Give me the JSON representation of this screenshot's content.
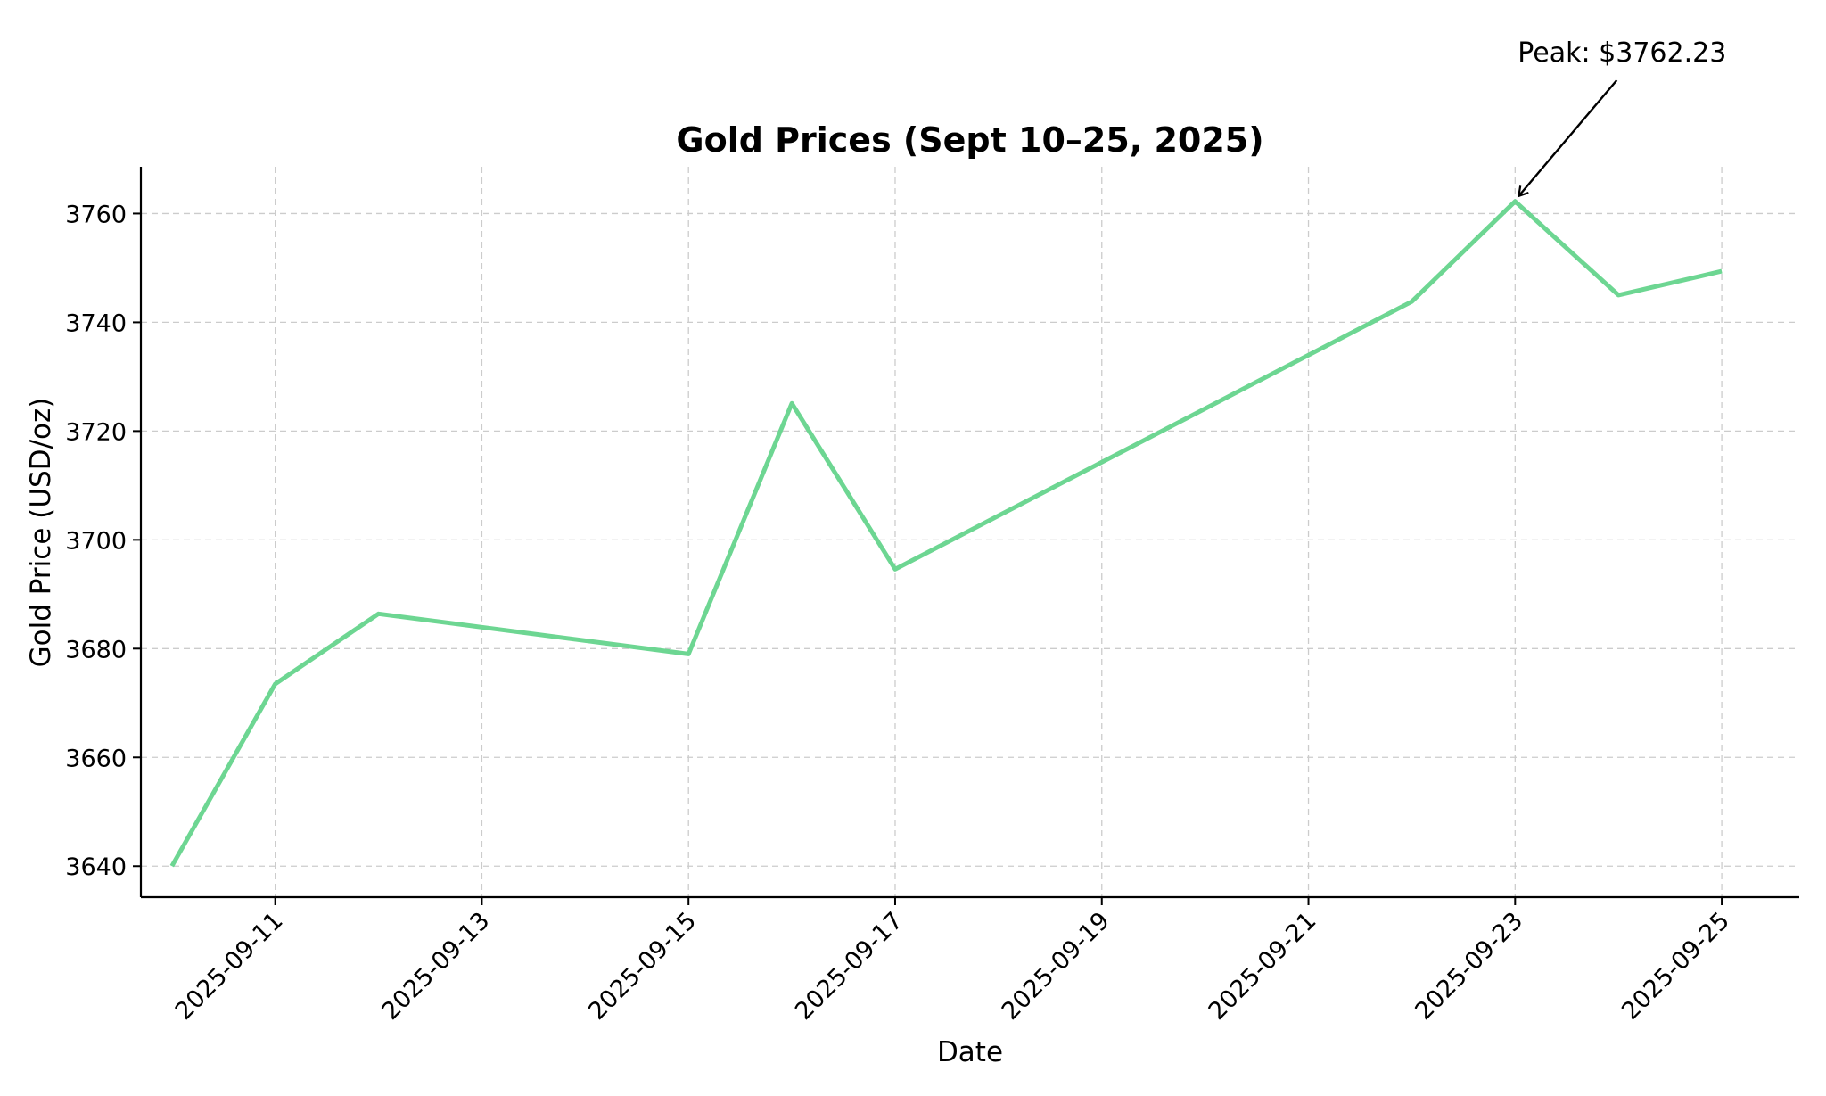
{
  "colors": {
    "series_line": "#6dd692",
    "annotation_arrow": "#000000"
  },
  "chart_data": {
    "type": "line",
    "title": "Gold Prices (Sept 10–25, 2025)",
    "xlabel": "Date",
    "ylabel": "Gold Price (USD/oz)",
    "xlim": [
      "2025-09-09.7",
      "2025-09-25.75"
    ],
    "ylim": [
      3634.3,
      3768.6
    ],
    "grid": true,
    "x_ticks": [
      "2025-09-11",
      "2025-09-13",
      "2025-09-15",
      "2025-09-17",
      "2025-09-19",
      "2025-09-21",
      "2025-09-23",
      "2025-09-25"
    ],
    "y_ticks": [
      3640,
      3660,
      3680,
      3700,
      3720,
      3740,
      3760
    ],
    "x": [
      "2025-09-10",
      "2025-09-11",
      "2025-09-12",
      "2025-09-15",
      "2025-09-16",
      "2025-09-17",
      "2025-09-22",
      "2025-09-23",
      "2025-09-24",
      "2025-09-25"
    ],
    "series": [
      {
        "values": [
          3640.0,
          3673.5,
          3686.4,
          3679.0,
          3725.1,
          3694.6,
          3743.8,
          3762.23,
          3745.0,
          3749.4
        ]
      }
    ],
    "annotations": [
      {
        "text": "Peak: $3762.23",
        "x": "2025-09-23",
        "y": 3762.23
      }
    ]
  }
}
